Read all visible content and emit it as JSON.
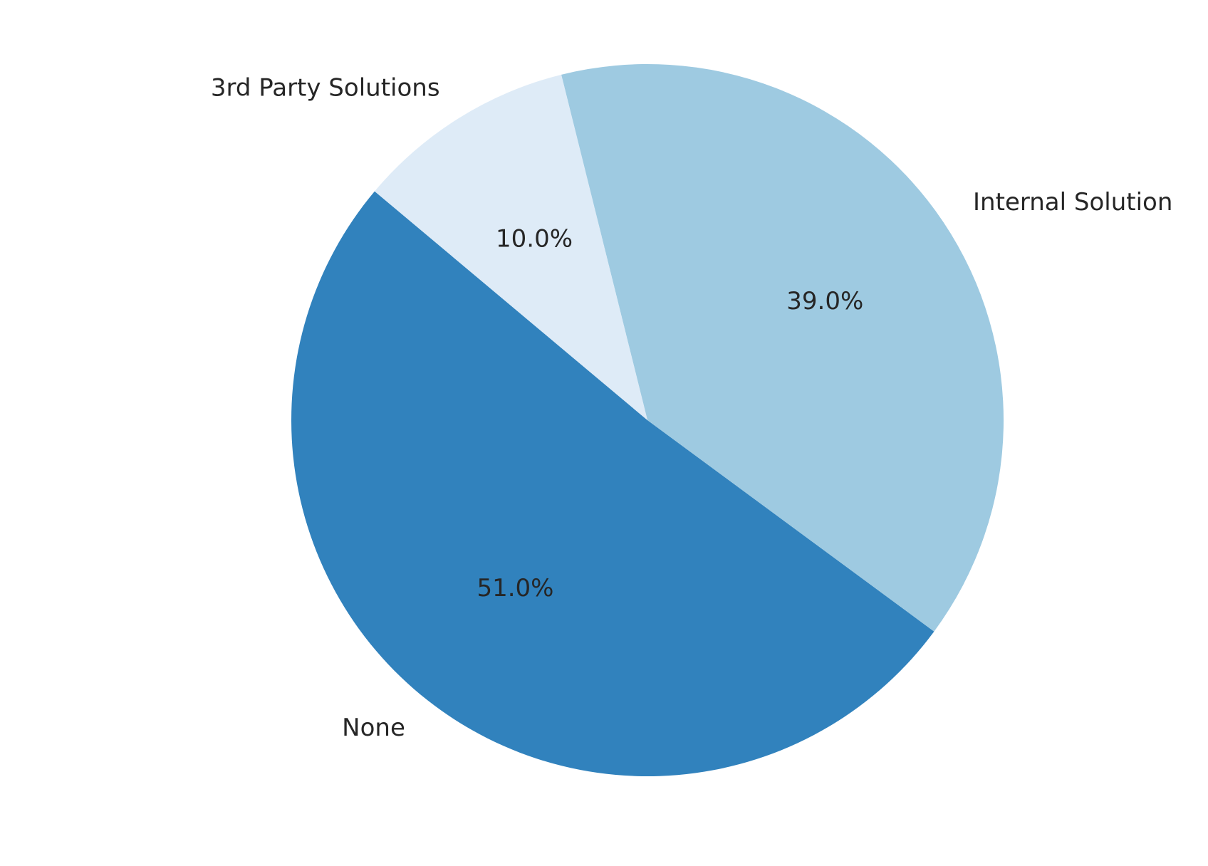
{
  "chart_data": {
    "type": "pie",
    "title": "",
    "slices": [
      {
        "label": "None",
        "value": 51.0,
        "pct_label": "51.0%",
        "color": "#3182bd"
      },
      {
        "label": "Internal Solution",
        "value": 39.0,
        "pct_label": "39.0%",
        "color": "#9ecae1"
      },
      {
        "label": "3rd Party Solutions",
        "value": 10.0,
        "pct_label": "10.0%",
        "color": "#deebf7"
      }
    ],
    "start_angle_deg": 140,
    "direction": "counterclockwise",
    "legend": "none"
  }
}
